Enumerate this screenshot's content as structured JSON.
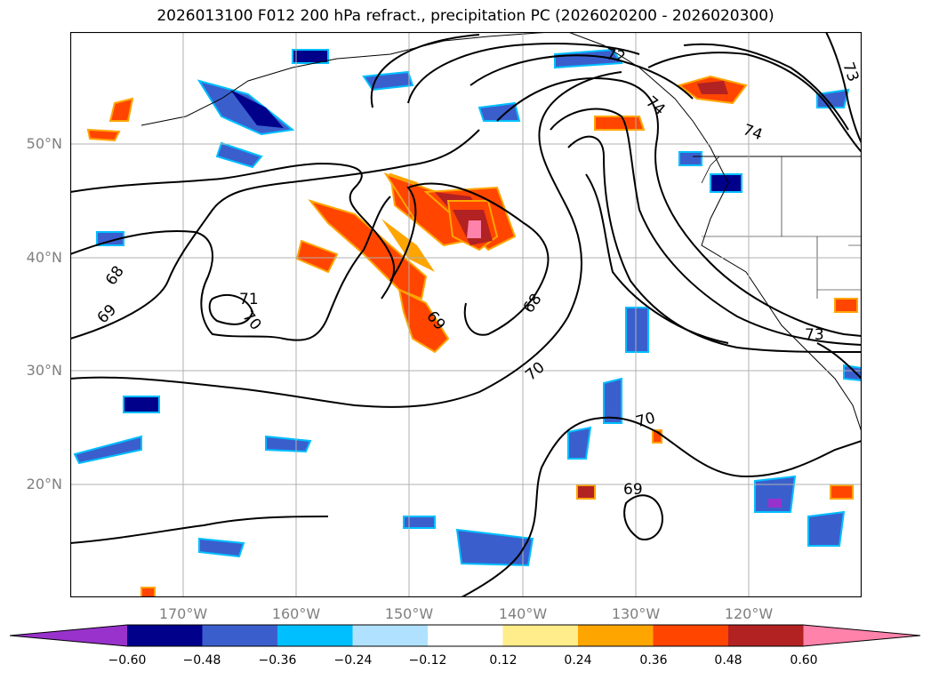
{
  "title": "2026013100 F012 200 hPa refract., precipitation PC (2026020200 - 2026020300)",
  "map": {
    "lat_labels": [
      "50°N",
      "40°N",
      "30°N",
      "20°N"
    ],
    "lon_labels": [
      "170°W",
      "160°W",
      "150°W",
      "140°W",
      "130°W",
      "120°W"
    ],
    "lat_range": [
      10,
      60
    ],
    "lon_range": [
      -180,
      -110
    ],
    "grid": true,
    "contour_labels": [
      "68",
      "69",
      "71",
      "70",
      "69",
      "68",
      "70",
      "70",
      "69",
      "72",
      "74",
      "73",
      "73",
      "74"
    ]
  },
  "colorbar": {
    "colors": [
      "#9932cc",
      "#00008b",
      "#3a5fcd",
      "#00bfff",
      "#b0e2ff",
      "#ffffff",
      "#ffec8b",
      "#ffa500",
      "#ff4500",
      "#b22222",
      "#ff82ab"
    ],
    "tick_labels": [
      "−0.60",
      "−0.48",
      "−0.36",
      "−0.24",
      "−0.12",
      "0.12",
      "0.24",
      "0.36",
      "0.48",
      "0.60"
    ]
  }
}
